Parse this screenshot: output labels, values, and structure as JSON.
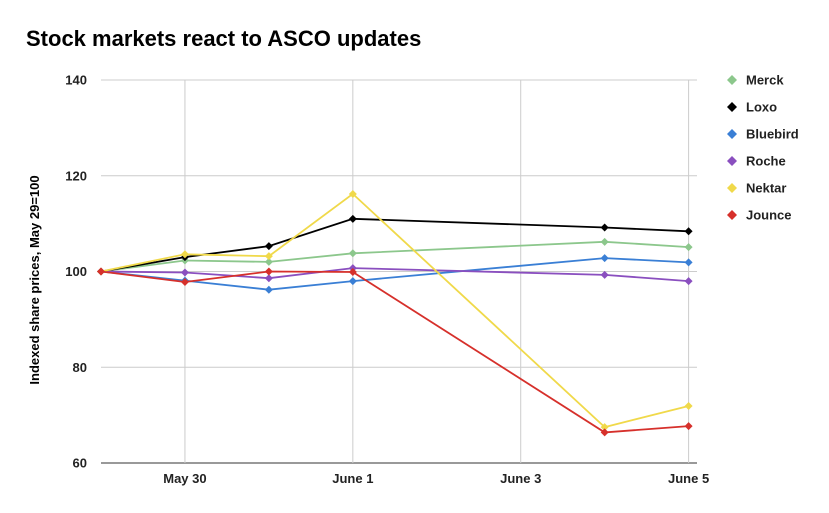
{
  "chart_data": {
    "type": "line",
    "title": "Stock markets react to ASCO updates",
    "xlabel": "",
    "ylabel": "Indexed share prices, May 29=100",
    "ylim": [
      60,
      140
    ],
    "yticks": [
      "140",
      "120",
      "100",
      "80",
      "60"
    ],
    "ytick_values": [
      140,
      120,
      100,
      80,
      60
    ],
    "xlim": [
      0,
      7.1
    ],
    "xticks": [
      {
        "label": "May 30",
        "x": 1
      },
      {
        "label": "June 1",
        "x": 3
      },
      {
        "label": "June 3",
        "x": 5
      },
      {
        "label": "June 5",
        "x": 7
      }
    ],
    "grid": true,
    "legend_position": "right",
    "x": [
      0,
      1,
      2,
      3,
      6,
      7
    ],
    "series": [
      {
        "name": "Merck",
        "color": "#8cc78c",
        "values": [
          100,
          102.3,
          102,
          103.8,
          106.2,
          105.1
        ]
      },
      {
        "name": "Loxo",
        "color": "#000000",
        "values": [
          100,
          103,
          105.3,
          111,
          109.2,
          108.4
        ]
      },
      {
        "name": "Bluebird",
        "color": "#3a7fd5",
        "values": [
          100,
          98.1,
          96.2,
          98,
          102.8,
          101.9
        ]
      },
      {
        "name": "Roche",
        "color": "#8a4fbf",
        "values": [
          100,
          99.8,
          98.6,
          100.7,
          99.3,
          98
        ]
      },
      {
        "name": "Nektar",
        "color": "#f0d94a",
        "values": [
          100,
          103.6,
          103.2,
          116.2,
          67.5,
          71.9
        ]
      },
      {
        "name": "Jounce",
        "color": "#d6302b",
        "values": [
          100,
          97.8,
          100,
          99.9,
          66.4,
          67.7
        ]
      }
    ]
  }
}
